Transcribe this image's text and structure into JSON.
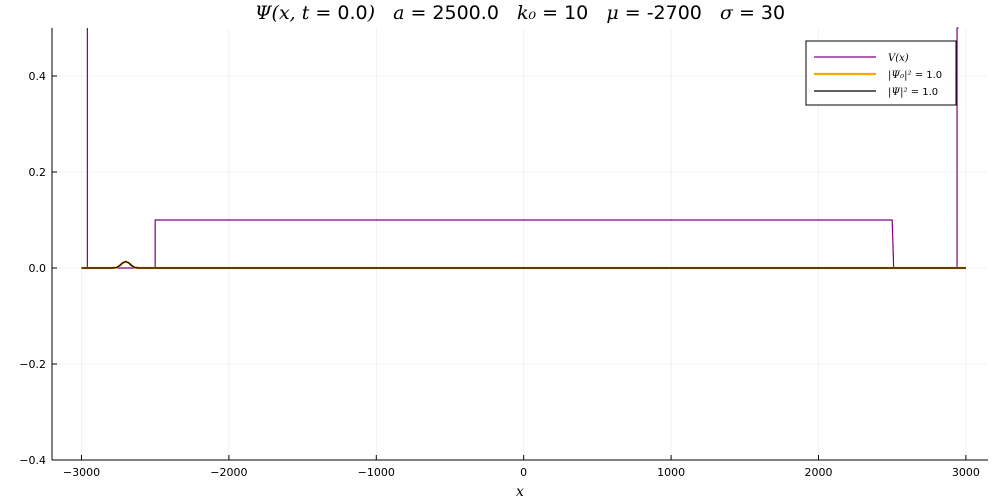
{
  "chart_data": {
    "type": "line",
    "title": "Ψ(x, t = 0.0)   a = 2500.0   k₀ = 10   μ = -2700   σ = 30",
    "title_parts": {
      "psi": "Ψ(x, t = ",
      "t": "0.0",
      "a_label": "a = ",
      "a": "2500.0",
      "k_label": "k₀ = ",
      "k": "10",
      "mu_label": "μ = ",
      "mu": "-2700",
      "sigma_label": "σ = ",
      "sigma": "30"
    },
    "xlabel": "x",
    "ylabel": "",
    "xlim": [
      -3200,
      3150
    ],
    "ylim": [
      -0.4,
      0.5
    ],
    "xticks": [
      -3000,
      -2000,
      -1000,
      0,
      1000,
      2000,
      3000
    ],
    "xtick_labels": [
      "−3000",
      "−2000",
      "−1000",
      "0",
      "1000",
      "2000",
      "3000"
    ],
    "yticks": [
      -0.4,
      -0.2,
      0.0,
      0.2,
      0.4
    ],
    "ytick_labels": [
      "−0.4",
      "−0.2",
      "0.0",
      "0.2",
      "0.4"
    ],
    "grid": true,
    "legend_position": "top-right",
    "series": [
      {
        "name": "V(x)",
        "color": "#800080",
        "x": [
          -2960,
          -2960,
          -2950,
          -2950,
          -2510,
          -2500,
          -2500,
          2500,
          2500,
          2510,
          2510,
          2940,
          2940,
          2950
        ],
        "y": [
          0.5,
          0.0,
          0.0,
          0.0,
          0.0,
          0.0,
          0.1,
          0.1,
          0.1,
          0.0,
          0.0,
          0.0,
          0.5,
          0.5
        ]
      },
      {
        "name": "|Ψ₀|² = 1.0",
        "name_parts": [
          "|Ψ₀|² = ",
          "1.0"
        ],
        "color": "#FFA500",
        "x": [
          -3000,
          -2790,
          -2760,
          -2740,
          -2720,
          -2700,
          -2680,
          -2660,
          -2640,
          -2610,
          3000
        ],
        "y": [
          0.0,
          0.0,
          0.0012,
          0.0052,
          0.0107,
          0.0133,
          0.0107,
          0.0052,
          0.0012,
          0.0,
          0.0
        ]
      },
      {
        "name": "|Ψ|² = 1.0",
        "name_parts": [
          "|Ψ|² = ",
          "1.0"
        ],
        "color": "#000000",
        "x": [
          -3000,
          -2790,
          -2760,
          -2740,
          -2720,
          -2700,
          -2680,
          -2660,
          -2640,
          -2610,
          3000
        ],
        "y": [
          0.0,
          0.0,
          0.0012,
          0.0052,
          0.0107,
          0.0133,
          0.0107,
          0.0052,
          0.0012,
          0.0,
          0.0
        ]
      }
    ]
  }
}
